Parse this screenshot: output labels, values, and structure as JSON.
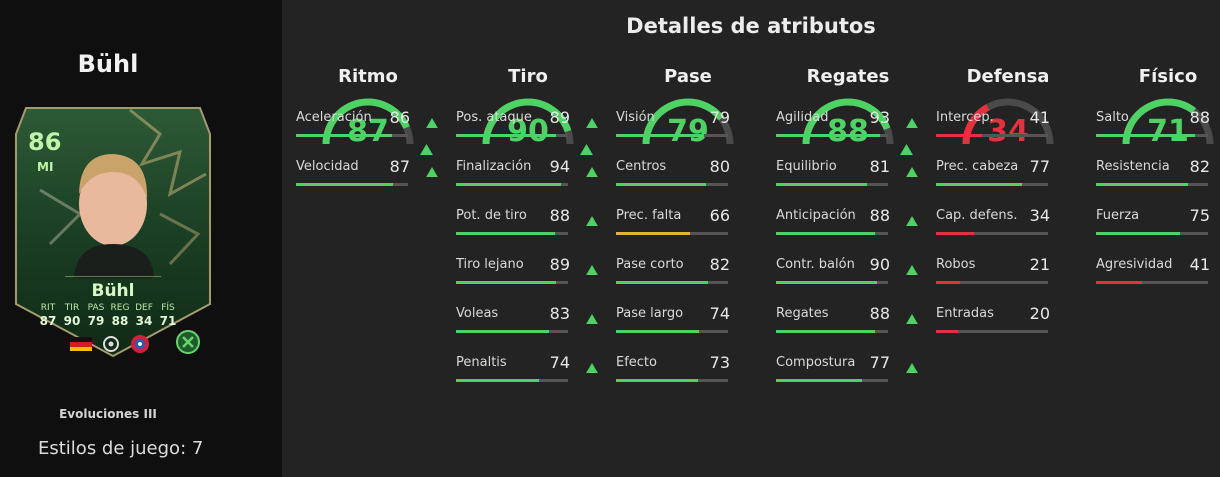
{
  "player": {
    "name": "Bühl",
    "card": {
      "rating": "86",
      "position": "MI",
      "name": "Bühl",
      "stats": [
        {
          "label": "RIT",
          "value": "87"
        },
        {
          "label": "TIR",
          "value": "90"
        },
        {
          "label": "PAS",
          "value": "79"
        },
        {
          "label": "REG",
          "value": "88"
        },
        {
          "label": "DEF",
          "value": "34"
        },
        {
          "label": "FÍS",
          "value": "71"
        }
      ]
    },
    "evolution": "Evoluciones III",
    "playstyles": "Estilos de juego: 7"
  },
  "title": "Detalles de atributos",
  "colors": {
    "green": "#4ed165",
    "yellow": "#e3b335",
    "red": "#e2323f",
    "arc_track": "#4a4a4a"
  },
  "categories": [
    {
      "name": "Ritmo",
      "value": 87,
      "up": true,
      "attributes": [
        {
          "name": "Aceleración",
          "value": 86,
          "up": true
        },
        {
          "name": "Velocidad",
          "value": 87,
          "up": true
        }
      ]
    },
    {
      "name": "Tiro",
      "value": 90,
      "up": true,
      "attributes": [
        {
          "name": "Pos. ataque",
          "value": 89,
          "up": true
        },
        {
          "name": "Finalización",
          "value": 94,
          "up": true
        },
        {
          "name": "Pot. de tiro",
          "value": 88,
          "up": true
        },
        {
          "name": "Tiro lejano",
          "value": 89,
          "up": true
        },
        {
          "name": "Voleas",
          "value": 83,
          "up": true
        },
        {
          "name": "Penaltis",
          "value": 74,
          "up": true
        }
      ]
    },
    {
      "name": "Pase",
      "value": 79,
      "up": false,
      "attributes": [
        {
          "name": "Visión",
          "value": 79,
          "up": false
        },
        {
          "name": "Centros",
          "value": 80,
          "up": false
        },
        {
          "name": "Prec. falta",
          "value": 66,
          "up": false
        },
        {
          "name": "Pase corto",
          "value": 82,
          "up": false
        },
        {
          "name": "Pase largo",
          "value": 74,
          "up": false
        },
        {
          "name": "Efecto",
          "value": 73,
          "up": false
        }
      ]
    },
    {
      "name": "Regates",
      "value": 88,
      "up": true,
      "attributes": [
        {
          "name": "Agilidad",
          "value": 93,
          "up": true
        },
        {
          "name": "Equilibrio",
          "value": 81,
          "up": true
        },
        {
          "name": "Anticipación",
          "value": 88,
          "up": true
        },
        {
          "name": "Contr. balón",
          "value": 90,
          "up": true
        },
        {
          "name": "Regates",
          "value": 88,
          "up": true
        },
        {
          "name": "Compostura",
          "value": 77,
          "up": true
        }
      ]
    },
    {
      "name": "Defensa",
      "value": 34,
      "up": false,
      "attributes": [
        {
          "name": "Intercep.",
          "value": 41,
          "up": false
        },
        {
          "name": "Prec. cabeza",
          "value": 77,
          "up": false
        },
        {
          "name": "Cap. defens.",
          "value": 34,
          "up": false
        },
        {
          "name": "Robos",
          "value": 21,
          "up": false
        },
        {
          "name": "Entradas",
          "value": 20,
          "up": false
        }
      ]
    },
    {
      "name": "Físico",
      "value": 71,
      "up": false,
      "attributes": [
        {
          "name": "Salto",
          "value": 88,
          "up": false
        },
        {
          "name": "Resistencia",
          "value": 82,
          "up": false
        },
        {
          "name": "Fuerza",
          "value": 75,
          "up": false
        },
        {
          "name": "Agresividad",
          "value": 41,
          "up": false
        }
      ]
    }
  ]
}
